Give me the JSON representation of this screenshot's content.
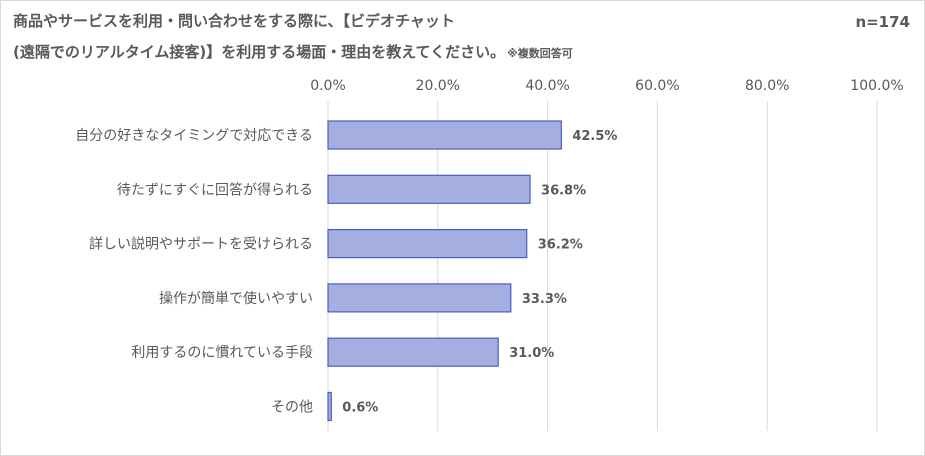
{
  "title_line1": "商品やサービスを利用・問い合わせをする際に、【ビデオチャット",
  "title_line2": "(遠隔でのリアルタイム接客)】を利用する場面・理由を教えてください。",
  "note": "※複数回答可",
  "n_label": "n=174",
  "colors": {
    "bar_fill": "#a5aee0",
    "bar_stroke": "#4a5dbf",
    "grid": "#d9d9d9",
    "text": "#595959"
  },
  "chart_data": {
    "type": "bar",
    "orientation": "horizontal",
    "categories": [
      "自分の好きなタイミングで対応できる",
      "待たずにすぐに回答が得られる",
      "詳しい説明やサポートを受けられる",
      "操作が簡単で使いやすい",
      "利用するのに慣れている手段",
      "その他"
    ],
    "values": [
      42.5,
      36.8,
      36.2,
      33.3,
      31.0,
      0.6
    ],
    "value_labels": [
      "42.5%",
      "36.8%",
      "36.2%",
      "33.3%",
      "31.0%",
      "0.6%"
    ],
    "xlim": [
      0,
      100
    ],
    "ticks": [
      0,
      20,
      40,
      60,
      80,
      100
    ],
    "tick_labels": [
      "0.0%",
      "20.0%",
      "40.0%",
      "60.0%",
      "80.0%",
      "100.0%"
    ],
    "axis_position": "top",
    "grid": true
  }
}
